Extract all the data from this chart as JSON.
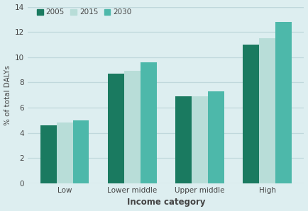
{
  "categories": [
    "Low",
    "Lower middle",
    "Upper middle",
    "High"
  ],
  "series": {
    "2005": [
      4.6,
      8.7,
      6.9,
      11.0
    ],
    "2015": [
      4.8,
      8.9,
      6.9,
      11.5
    ],
    "2030": [
      5.0,
      9.6,
      7.3,
      12.8
    ]
  },
  "colors": {
    "2005": "#1a7a60",
    "2015": "#b8ddd8",
    "2030": "#4db8aa"
  },
  "ylabel": "% of total DALYs",
  "xlabel": "Income category",
  "ylim": [
    0,
    14
  ],
  "yticks": [
    0,
    2,
    4,
    6,
    8,
    10,
    12,
    14
  ],
  "legend_labels": [
    "2005",
    "2015",
    "2030"
  ],
  "background_color": "#ddeef0",
  "plot_background": "#ddeef0",
  "bar_width": 0.24,
  "grid_color": "#c0d8dc",
  "text_color": "#444444"
}
